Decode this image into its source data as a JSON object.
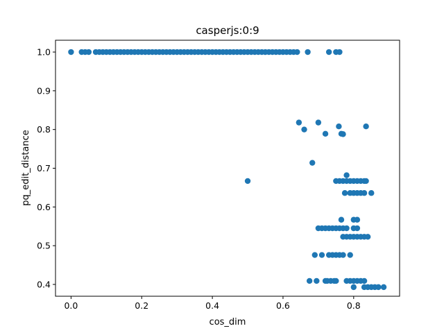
{
  "chart_data": {
    "type": "scatter",
    "title": "casperjs:0:9",
    "xlabel": "cos_dim",
    "ylabel": "pq_edit_distance",
    "xlim": [
      -0.044,
      0.93
    ],
    "ylim": [
      0.3695,
      1.0305
    ],
    "xticks": [
      0.0,
      0.2,
      0.4,
      0.6,
      0.8
    ],
    "xtick_labels": [
      "0.0",
      "0.2",
      "0.4",
      "0.6",
      "0.8"
    ],
    "yticks": [
      0.4,
      0.5,
      0.6,
      0.7,
      0.8,
      0.9,
      1.0
    ],
    "ytick_labels": [
      "0.4",
      "0.5",
      "0.6",
      "0.7",
      "0.8",
      "0.9",
      "1.0"
    ],
    "grid": false,
    "legend": "none",
    "marker_color": "#1f77b4",
    "series": [
      {
        "points": [
          [
            0.0,
            1.0
          ],
          [
            0.03,
            1.0
          ],
          [
            0.04,
            1.0
          ],
          [
            0.05,
            1.0
          ],
          [
            0.07,
            1.0
          ],
          [
            0.08,
            1.0
          ],
          [
            0.09,
            1.0
          ],
          [
            0.1,
            1.0
          ],
          [
            0.11,
            1.0
          ],
          [
            0.12,
            1.0
          ],
          [
            0.13,
            1.0
          ],
          [
            0.14,
            1.0
          ],
          [
            0.15,
            1.0
          ],
          [
            0.16,
            1.0
          ],
          [
            0.17,
            1.0
          ],
          [
            0.18,
            1.0
          ],
          [
            0.19,
            1.0
          ],
          [
            0.2,
            1.0
          ],
          [
            0.21,
            1.0
          ],
          [
            0.22,
            1.0
          ],
          [
            0.23,
            1.0
          ],
          [
            0.24,
            1.0
          ],
          [
            0.25,
            1.0
          ],
          [
            0.26,
            1.0
          ],
          [
            0.27,
            1.0
          ],
          [
            0.28,
            1.0
          ],
          [
            0.29,
            1.0
          ],
          [
            0.3,
            1.0
          ],
          [
            0.31,
            1.0
          ],
          [
            0.32,
            1.0
          ],
          [
            0.33,
            1.0
          ],
          [
            0.34,
            1.0
          ],
          [
            0.35,
            1.0
          ],
          [
            0.36,
            1.0
          ],
          [
            0.37,
            1.0
          ],
          [
            0.38,
            1.0
          ],
          [
            0.39,
            1.0
          ],
          [
            0.4,
            1.0
          ],
          [
            0.41,
            1.0
          ],
          [
            0.42,
            1.0
          ],
          [
            0.43,
            1.0
          ],
          [
            0.44,
            1.0
          ],
          [
            0.45,
            1.0
          ],
          [
            0.46,
            1.0
          ],
          [
            0.47,
            1.0
          ],
          [
            0.48,
            1.0
          ],
          [
            0.49,
            1.0
          ],
          [
            0.5,
            1.0
          ],
          [
            0.51,
            1.0
          ],
          [
            0.52,
            1.0
          ],
          [
            0.53,
            1.0
          ],
          [
            0.54,
            1.0
          ],
          [
            0.55,
            1.0
          ],
          [
            0.56,
            1.0
          ],
          [
            0.57,
            1.0
          ],
          [
            0.58,
            1.0
          ],
          [
            0.59,
            1.0
          ],
          [
            0.6,
            1.0
          ],
          [
            0.61,
            1.0
          ],
          [
            0.62,
            1.0
          ],
          [
            0.63,
            1.0
          ],
          [
            0.64,
            1.0
          ],
          [
            0.67,
            1.0
          ],
          [
            0.73,
            1.0
          ],
          [
            0.75,
            1.0
          ],
          [
            0.76,
            1.0
          ],
          [
            0.645,
            0.818
          ],
          [
            0.7,
            0.818
          ],
          [
            0.758,
            0.808
          ],
          [
            0.835,
            0.808
          ],
          [
            0.66,
            0.8
          ],
          [
            0.72,
            0.789
          ],
          [
            0.765,
            0.789
          ],
          [
            0.77,
            0.788
          ],
          [
            0.683,
            0.714
          ],
          [
            0.5,
            0.667
          ],
          [
            0.78,
            0.682
          ],
          [
            0.75,
            0.667
          ],
          [
            0.76,
            0.667
          ],
          [
            0.77,
            0.667
          ],
          [
            0.78,
            0.667
          ],
          [
            0.79,
            0.667
          ],
          [
            0.8,
            0.667
          ],
          [
            0.81,
            0.667
          ],
          [
            0.82,
            0.667
          ],
          [
            0.83,
            0.667
          ],
          [
            0.835,
            0.667
          ],
          [
            0.775,
            0.636
          ],
          [
            0.79,
            0.636
          ],
          [
            0.8,
            0.636
          ],
          [
            0.81,
            0.636
          ],
          [
            0.82,
            0.636
          ],
          [
            0.83,
            0.636
          ],
          [
            0.85,
            0.636
          ],
          [
            0.765,
            0.567
          ],
          [
            0.8,
            0.567
          ],
          [
            0.81,
            0.567
          ],
          [
            0.7,
            0.545
          ],
          [
            0.71,
            0.545
          ],
          [
            0.72,
            0.545
          ],
          [
            0.73,
            0.545
          ],
          [
            0.74,
            0.545
          ],
          [
            0.75,
            0.545
          ],
          [
            0.76,
            0.545
          ],
          [
            0.77,
            0.545
          ],
          [
            0.78,
            0.545
          ],
          [
            0.8,
            0.545
          ],
          [
            0.81,
            0.545
          ],
          [
            0.77,
            0.523
          ],
          [
            0.78,
            0.523
          ],
          [
            0.79,
            0.523
          ],
          [
            0.8,
            0.523
          ],
          [
            0.81,
            0.523
          ],
          [
            0.82,
            0.523
          ],
          [
            0.83,
            0.523
          ],
          [
            0.84,
            0.523
          ],
          [
            0.69,
            0.476
          ],
          [
            0.71,
            0.476
          ],
          [
            0.73,
            0.476
          ],
          [
            0.74,
            0.476
          ],
          [
            0.75,
            0.476
          ],
          [
            0.76,
            0.476
          ],
          [
            0.77,
            0.476
          ],
          [
            0.79,
            0.476
          ],
          [
            0.675,
            0.409
          ],
          [
            0.695,
            0.409
          ],
          [
            0.72,
            0.409
          ],
          [
            0.725,
            0.409
          ],
          [
            0.735,
            0.409
          ],
          [
            0.745,
            0.409
          ],
          [
            0.75,
            0.409
          ],
          [
            0.78,
            0.409
          ],
          [
            0.79,
            0.409
          ],
          [
            0.8,
            0.409
          ],
          [
            0.81,
            0.409
          ],
          [
            0.82,
            0.409
          ],
          [
            0.83,
            0.409
          ],
          [
            0.8,
            0.393
          ],
          [
            0.83,
            0.393
          ],
          [
            0.84,
            0.393
          ],
          [
            0.85,
            0.393
          ],
          [
            0.86,
            0.393
          ],
          [
            0.87,
            0.393
          ],
          [
            0.885,
            0.393
          ]
        ]
      }
    ]
  }
}
